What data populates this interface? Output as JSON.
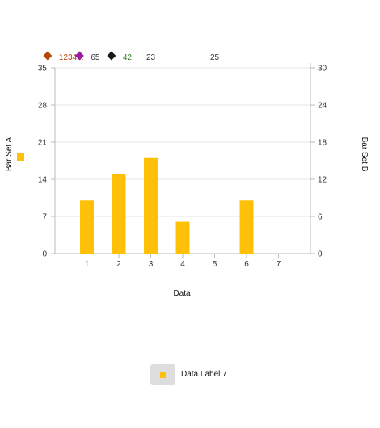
{
  "chart_data": {
    "type": "bar",
    "x_label": "Data",
    "categories": [
      "1",
      "2",
      "3",
      "4",
      "5",
      "6",
      "7"
    ],
    "series": [
      {
        "name": "Data Label 7",
        "axis": "left",
        "color": "#FFC107",
        "values": [
          10,
          15,
          18,
          6,
          null,
          10,
          null
        ]
      }
    ],
    "y_left": {
      "label": "Bar Set A",
      "min": 0,
      "max": 35,
      "ticks": [
        0,
        7,
        14,
        21,
        28,
        35
      ]
    },
    "y_right": {
      "label": "Bar Set B",
      "min": 0,
      "max": 30,
      "ticks": [
        0,
        6,
        12,
        18,
        24,
        30
      ]
    },
    "grid": true,
    "top_markers": [
      {
        "label": "1234...",
        "color": "#B5470B",
        "label_color": "#B5470B",
        "x": 0.25
      },
      {
        "label": "65",
        "color": "#9C1BA3",
        "label_color": "#333333",
        "x": 1.25
      },
      {
        "label": "42",
        "color": "#1A1A1A",
        "label_color": "#2E7D1B",
        "x": 2.25
      },
      {
        "label": "23",
        "color": null,
        "label_color": "#333333",
        "x": 3.0
      },
      {
        "label": "25",
        "color": null,
        "label_color": "#333333",
        "x": 5.0
      }
    ],
    "left_axis_swatch_color": "#FFC107",
    "legend": [
      {
        "label": "Data Label 7",
        "color": "#FFC107"
      }
    ]
  }
}
